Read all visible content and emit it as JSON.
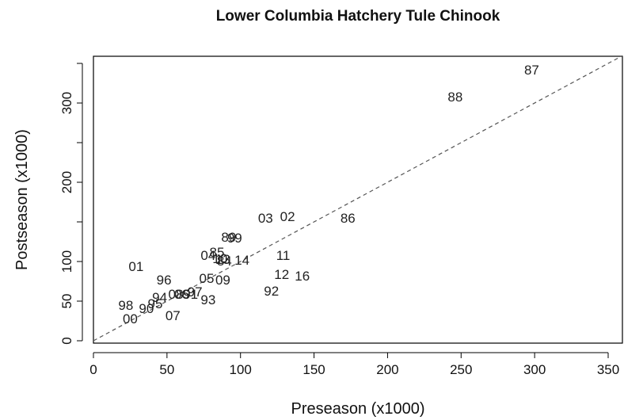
{
  "chart_data": {
    "type": "scatter",
    "title": "Lower Columbia Hatchery Tule Chinook",
    "xlabel": "Preseason (x1000)",
    "ylabel": "Postseason (x1000)",
    "xlim": [
      0,
      360
    ],
    "ylim": [
      0,
      360
    ],
    "x_ticks": [
      0,
      50,
      100,
      150,
      200,
      250,
      300,
      350
    ],
    "y_ticks": [
      0,
      50,
      100,
      200,
      300
    ],
    "grid": false,
    "reference_line": {
      "type": "y=x",
      "style": "dashed"
    },
    "points": [
      {
        "label": "87",
        "x": 298,
        "y": 342
      },
      {
        "label": "88",
        "x": 246,
        "y": 308
      },
      {
        "label": "86",
        "x": 173,
        "y": 155
      },
      {
        "label": "02",
        "x": 132,
        "y": 157
      },
      {
        "label": "03",
        "x": 117,
        "y": 155
      },
      {
        "label": "89",
        "x": 92,
        "y": 131
      },
      {
        "label": "99",
        "x": 96,
        "y": 130
      },
      {
        "label": "04",
        "x": 78,
        "y": 108
      },
      {
        "label": "85",
        "x": 84,
        "y": 112
      },
      {
        "label": "10",
        "x": 86,
        "y": 104
      },
      {
        "label": "84",
        "x": 89,
        "y": 101
      },
      {
        "label": "13",
        "x": 88,
        "y": 103
      },
      {
        "label": "14",
        "x": 101,
        "y": 102
      },
      {
        "label": "11",
        "x": 129,
        "y": 108
      },
      {
        "label": "01",
        "x": 29,
        "y": 94
      },
      {
        "label": "12",
        "x": 128,
        "y": 84
      },
      {
        "label": "16",
        "x": 142,
        "y": 82
      },
      {
        "label": "96",
        "x": 48,
        "y": 77
      },
      {
        "label": "05",
        "x": 77,
        "y": 79
      },
      {
        "label": "09",
        "x": 88,
        "y": 77
      },
      {
        "label": "92",
        "x": 121,
        "y": 63
      },
      {
        "label": "97",
        "x": 69,
        "y": 62
      },
      {
        "label": "08",
        "x": 56,
        "y": 59
      },
      {
        "label": "06",
        "x": 60,
        "y": 59
      },
      {
        "label": "91",
        "x": 66,
        "y": 59
      },
      {
        "label": "93",
        "x": 78,
        "y": 52
      },
      {
        "label": "94",
        "x": 45,
        "y": 55
      },
      {
        "label": "95",
        "x": 42,
        "y": 47
      },
      {
        "label": "98",
        "x": 22,
        "y": 45
      },
      {
        "label": "90",
        "x": 36,
        "y": 41
      },
      {
        "label": "00",
        "x": 25,
        "y": 28
      },
      {
        "label": "07",
        "x": 54,
        "y": 32
      }
    ]
  }
}
